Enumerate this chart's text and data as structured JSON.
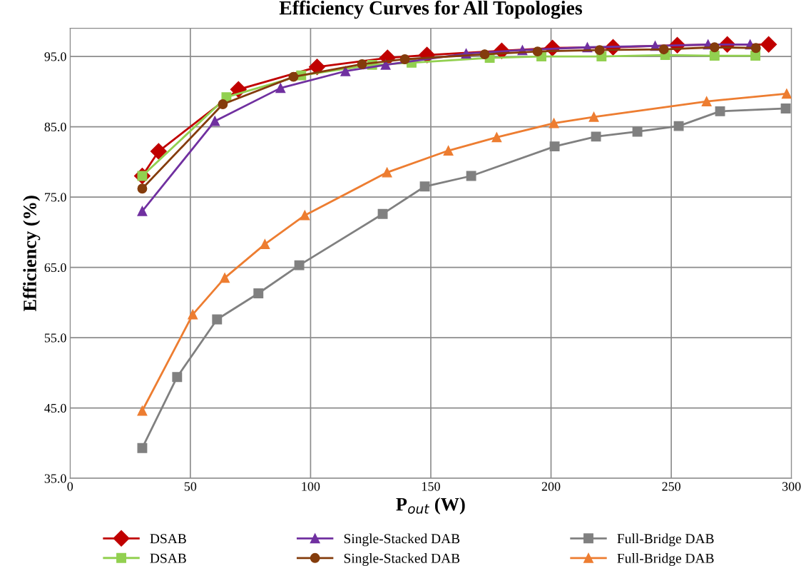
{
  "chart_data": {
    "type": "line",
    "title": "Efficiency Curves for All Topologies",
    "xlabel": "P$_{out}$ (W)",
    "ylabel": "Efficiency (%)",
    "xlim": [
      0,
      300
    ],
    "xticks": [
      0,
      50,
      100,
      150,
      200,
      250,
      300
    ],
    "ylim": [
      35,
      99
    ],
    "yticks": [
      {
        "value": 35,
        "label": "35.0"
      },
      {
        "value": 45,
        "label": "45.0"
      },
      {
        "value": 55,
        "label": "55.0"
      },
      {
        "value": 65,
        "label": "65.0"
      },
      {
        "value": 75,
        "label": "75.0"
      },
      {
        "value": 85,
        "label": "85.0"
      },
      {
        "value": 95,
        "label": "95.0"
      }
    ],
    "grid": true,
    "legend": "bottom",
    "series": [
      {
        "name": "DSAB",
        "color": "#c00000",
        "marker": "diamond",
        "x": [
          30,
          36.8,
          70,
          102.7,
          132,
          148.4,
          179.5,
          200.6,
          225.8,
          252.5,
          273.3,
          290.5
        ],
        "values": [
          78.0,
          81.5,
          90.3,
          93.5,
          94.8,
          95.2,
          95.8,
          96.2,
          96.3,
          96.6,
          96.7,
          96.7
        ]
      },
      {
        "name": "DSAB",
        "color": "#92d050",
        "marker": "square",
        "x": [
          30,
          65,
          96.1,
          125.6,
          142,
          174.5,
          196,
          221,
          247.5,
          268,
          285
        ],
        "values": [
          78.0,
          89.2,
          92.3,
          93.8,
          94.1,
          94.8,
          95.0,
          95.0,
          95.2,
          95.1,
          95.1
        ]
      },
      {
        "name": "Single-Stacked DAB",
        "color": "#7030a0",
        "marker": "triangle",
        "x": [
          30,
          60.2,
          87.5,
          114.5,
          131.2,
          164.7,
          188.1,
          215.1,
          243.3,
          265.3,
          282.8
        ],
        "values": [
          73.0,
          85.8,
          90.5,
          92.9,
          93.8,
          95.4,
          95.9,
          96.3,
          96.5,
          96.7,
          96.7
        ]
      },
      {
        "name": "Single-Stacked DAB",
        "color": "#843c0c",
        "marker": "circle",
        "x": [
          30,
          63.5,
          92.9,
          121.4,
          139.2,
          172.4,
          194.4,
          220.2,
          246.9,
          268,
          285.2
        ],
        "values": [
          76.2,
          88.2,
          92.1,
          93.9,
          94.6,
          95.3,
          95.7,
          95.9,
          96.0,
          96.3,
          96.2
        ]
      },
      {
        "name": "Full-Bridge DAB",
        "color": "#808080",
        "marker": "square",
        "x": [
          30,
          44.5,
          61.1,
          78.3,
          95.3,
          130,
          147.5,
          166.8,
          201.5,
          218.7,
          235.9,
          253.1,
          270.3,
          297.6
        ],
        "values": [
          39.3,
          49.4,
          57.6,
          61.3,
          65.3,
          72.6,
          76.5,
          78.0,
          82.2,
          83.6,
          84.3,
          85.1,
          87.2,
          87.6
        ]
      },
      {
        "name": "Full-Bridge DAB",
        "color": "#ed7d31",
        "marker": "triangle",
        "x": [
          30,
          51,
          64.3,
          81,
          97.6,
          131.8,
          157.3,
          177.4,
          201.2,
          217.8,
          264.7,
          298
        ],
        "values": [
          44.6,
          58.3,
          63.5,
          68.3,
          72.4,
          78.5,
          81.6,
          83.5,
          85.5,
          86.4,
          88.6,
          89.7
        ]
      }
    ]
  }
}
